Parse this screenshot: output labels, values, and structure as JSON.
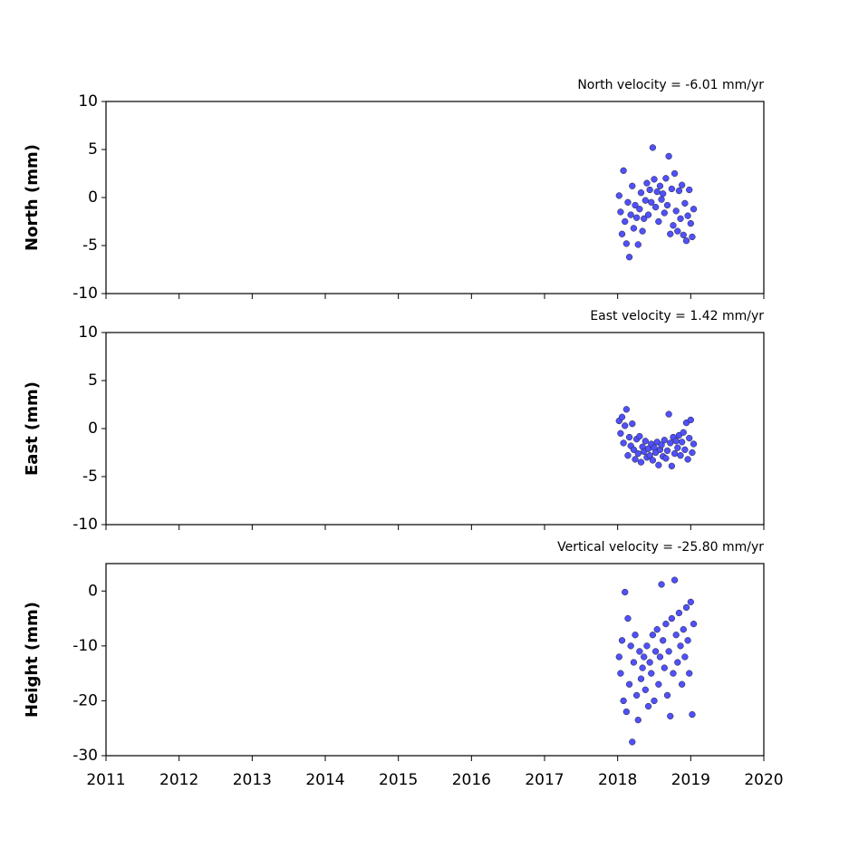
{
  "chart_data": [
    {
      "type": "scatter",
      "title": "North velocity = -6.01 mm/yr",
      "y_label": "North (mm)",
      "color": "#5050ff",
      "xlim": [
        2011,
        2020
      ],
      "xticks": [
        2011,
        2012,
        2013,
        2014,
        2015,
        2016,
        2017,
        2018,
        2019,
        2020
      ],
      "ylim": [
        -10,
        10
      ],
      "yticks": [
        -10,
        -5,
        0,
        5,
        10
      ],
      "x": [
        2018.02,
        2018.04,
        2018.06,
        2018.08,
        2018.1,
        2018.12,
        2018.14,
        2018.16,
        2018.18,
        2018.2,
        2018.22,
        2018.24,
        2018.26,
        2018.28,
        2018.3,
        2018.32,
        2018.34,
        2018.36,
        2018.38,
        2018.4,
        2018.42,
        2018.44,
        2018.46,
        2018.48,
        2018.5,
        2018.52,
        2018.54,
        2018.56,
        2018.58,
        2018.6,
        2018.62,
        2018.64,
        2018.66,
        2018.68,
        2018.7,
        2018.72,
        2018.74,
        2018.76,
        2018.78,
        2018.8,
        2018.82,
        2018.84,
        2018.86,
        2018.88,
        2018.9,
        2018.92,
        2018.94,
        2018.96,
        2018.98,
        2019.0,
        2019.02,
        2019.04
      ],
      "values": [
        0.2,
        -1.5,
        -3.8,
        2.8,
        -2.5,
        -4.8,
        -0.5,
        -6.2,
        -1.8,
        1.2,
        -3.2,
        -0.8,
        -2.1,
        -4.9,
        -1.2,
        0.5,
        -3.5,
        -2.2,
        -0.3,
        1.5,
        -1.8,
        0.8,
        -0.5,
        5.2,
        1.9,
        -1.0,
        0.6,
        -2.5,
        1.2,
        -0.2,
        0.4,
        -1.6,
        2.0,
        -0.8,
        4.3,
        -3.8,
        0.9,
        -2.9,
        2.5,
        -1.4,
        -3.5,
        0.7,
        -2.2,
        1.3,
        -3.9,
        -0.6,
        -4.5,
        -1.9,
        0.8,
        -2.7,
        -4.1,
        -1.2
      ]
    },
    {
      "type": "scatter",
      "title": "East velocity = 1.42 mm/yr",
      "y_label": "East (mm)",
      "color": "#5050ff",
      "xlim": [
        2011,
        2020
      ],
      "xticks": [
        2011,
        2012,
        2013,
        2014,
        2015,
        2016,
        2017,
        2018,
        2019,
        2020
      ],
      "ylim": [
        -10,
        10
      ],
      "yticks": [
        -10,
        -5,
        0,
        5,
        10
      ],
      "x": [
        2018.02,
        2018.04,
        2018.06,
        2018.08,
        2018.1,
        2018.12,
        2018.14,
        2018.16,
        2018.18,
        2018.2,
        2018.22,
        2018.24,
        2018.26,
        2018.28,
        2018.3,
        2018.32,
        2018.34,
        2018.36,
        2018.38,
        2018.4,
        2018.42,
        2018.44,
        2018.46,
        2018.48,
        2018.5,
        2018.52,
        2018.54,
        2018.56,
        2018.58,
        2018.6,
        2018.62,
        2018.64,
        2018.66,
        2018.68,
        2018.7,
        2018.72,
        2018.74,
        2018.76,
        2018.78,
        2018.8,
        2018.82,
        2018.84,
        2018.86,
        2018.88,
        2018.9,
        2018.92,
        2018.94,
        2018.96,
        2018.98,
        2019.0,
        2019.02,
        2019.04
      ],
      "values": [
        0.8,
        -0.5,
        1.2,
        -1.5,
        0.3,
        2.0,
        -2.8,
        -0.9,
        -1.8,
        0.5,
        -2.2,
        -3.2,
        -1.1,
        -2.6,
        -0.8,
        -3.5,
        -1.9,
        -2.4,
        -1.3,
        -3.0,
        -2.1,
        -2.8,
        -1.6,
        -3.3,
        -2.0,
        -2.5,
        -1.4,
        -3.8,
        -2.2,
        -1.7,
        -2.9,
        -1.2,
        -3.1,
        -2.3,
        1.5,
        -1.5,
        -3.9,
        -0.9,
        -2.6,
        -1.3,
        -2.0,
        -0.7,
        -2.8,
        -1.4,
        -0.4,
        -2.2,
        0.6,
        -3.2,
        -1.0,
        0.9,
        -2.5,
        -1.6
      ]
    },
    {
      "type": "scatter",
      "title": "Vertical velocity = -25.80 mm/yr",
      "y_label": "Height (mm)",
      "color": "#5050ff",
      "xlim": [
        2011,
        2020
      ],
      "xticks": [
        2011,
        2012,
        2013,
        2014,
        2015,
        2016,
        2017,
        2018,
        2019,
        2020
      ],
      "ylim": [
        -30,
        5
      ],
      "yticks": [
        -30,
        -20,
        -10,
        0
      ],
      "x": [
        2018.02,
        2018.04,
        2018.06,
        2018.08,
        2018.1,
        2018.12,
        2018.14,
        2018.16,
        2018.18,
        2018.2,
        2018.22,
        2018.24,
        2018.26,
        2018.28,
        2018.3,
        2018.32,
        2018.34,
        2018.36,
        2018.38,
        2018.4,
        2018.42,
        2018.44,
        2018.46,
        2018.48,
        2018.5,
        2018.52,
        2018.54,
        2018.56,
        2018.58,
        2018.6,
        2018.62,
        2018.64,
        2018.66,
        2018.68,
        2018.7,
        2018.72,
        2018.74,
        2018.76,
        2018.78,
        2018.8,
        2018.82,
        2018.84,
        2018.86,
        2018.88,
        2018.9,
        2018.92,
        2018.94,
        2018.96,
        2018.98,
        2019.0,
        2019.02,
        2019.04
      ],
      "values": [
        -12,
        -15,
        -9,
        -20,
        -0.2,
        -22,
        -5,
        -17,
        -10,
        -27.5,
        -13,
        -8,
        -19,
        -23.5,
        -11,
        -16,
        -14,
        -12,
        -18,
        -10,
        -21,
        -13,
        -15,
        -8,
        -20,
        -11,
        -7,
        -17,
        -12,
        1.2,
        -9,
        -14,
        -6,
        -19,
        -11,
        -22.8,
        -5,
        -15,
        2,
        -8,
        -13,
        -4,
        -10,
        -17,
        -7,
        -12,
        -3,
        -9,
        -15,
        -2,
        -22.5,
        -6
      ]
    }
  ]
}
